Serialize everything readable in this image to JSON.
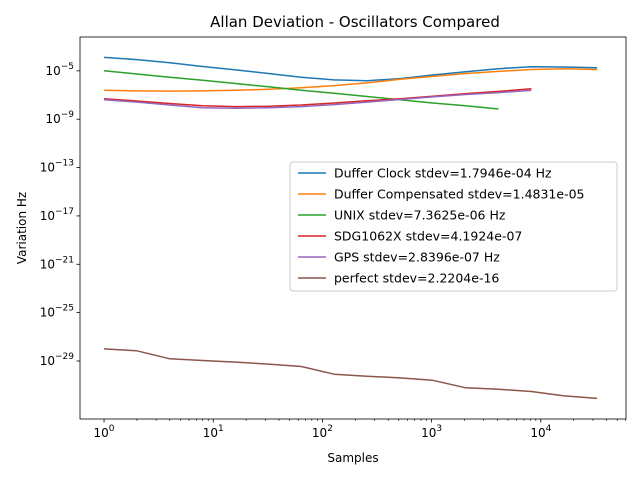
{
  "chart_data": {
    "type": "line",
    "title": "Allan Deviation - Oscillators Compared",
    "xlabel": "Samples",
    "ylabel": "Variation Hz",
    "xscale": "log",
    "yscale": "log",
    "xlim_exp": [
      -0.22,
      4.78
    ],
    "ylim_exp": [
      -33.8,
      -2.2
    ],
    "x_ticks": [
      {
        "exp": 0,
        "label": "0"
      },
      {
        "exp": 1,
        "label": "1"
      },
      {
        "exp": 2,
        "label": "2"
      },
      {
        "exp": 3,
        "label": "3"
      },
      {
        "exp": 4,
        "label": "4"
      }
    ],
    "y_ticks": [
      {
        "exp": -5,
        "label": "−5"
      },
      {
        "exp": -9,
        "label": "−9"
      },
      {
        "exp": -13,
        "label": "−13"
      },
      {
        "exp": -17,
        "label": "−17"
      },
      {
        "exp": -21,
        "label": "−21"
      },
      {
        "exp": -25,
        "label": "−25"
      },
      {
        "exp": -29,
        "label": "−29"
      }
    ],
    "grid": false,
    "legend_position": "center-right",
    "series": [
      {
        "name": "Duffer Clock stdev=1.7946e-04 Hz",
        "color": "#1f77b4",
        "x": [
          1,
          2,
          4,
          8,
          16,
          32,
          64,
          128,
          256,
          512,
          1024,
          2048,
          4096,
          8192,
          16384,
          32768
        ],
        "y": [
          0.00013,
          8.5e-05,
          4.7e-05,
          2.3e-05,
          1.2e-05,
          6e-06,
          3e-06,
          1.8e-06,
          1.5e-06,
          2.3e-06,
          4.5e-06,
          8.5e-06,
          1.5e-05,
          2.2e-05,
          2.1e-05,
          1.8e-05
        ]
      },
      {
        "name": "Duffer Compensated stdev=1.4831e-05",
        "color": "#ff7f0e",
        "x": [
          1,
          2,
          4,
          8,
          16,
          32,
          64,
          128,
          256,
          512,
          1024,
          2048,
          4096,
          8192,
          16384,
          32768
        ],
        "y": [
          2.5e-07,
          2.2e-07,
          2.1e-07,
          2.2e-07,
          2.5e-07,
          3e-07,
          4e-07,
          6e-07,
          1e-06,
          2e-06,
          3.5e-06,
          6e-06,
          9e-06,
          1.3e-05,
          1.5e-05,
          1.3e-05
        ]
      },
      {
        "name": "UNIX stdev=7.3625e-06 Hz",
        "color": "#2ca02c",
        "x": [
          1,
          2,
          4,
          8,
          16,
          32,
          64,
          128,
          256,
          512,
          1024,
          2048,
          4096
        ],
        "y": [
          1e-05,
          5.5e-06,
          3e-06,
          1.7e-06,
          9e-07,
          4.8e-07,
          2.5e-07,
          1.4e-07,
          7.5e-08,
          4e-08,
          2.2e-08,
          1.3e-08,
          7e-09
        ]
      },
      {
        "name": "SDG1062X stdev=4.1924e-07",
        "color": "#d62728",
        "x": [
          1,
          2,
          4,
          8,
          16,
          32,
          64,
          128,
          256,
          512,
          1024,
          2048,
          4096,
          8192
        ],
        "y": [
          5e-08,
          3.2e-08,
          2e-08,
          1.3e-08,
          1.1e-08,
          1.2e-08,
          1.5e-08,
          2.2e-08,
          3.3e-08,
          5e-08,
          8e-08,
          1.3e-07,
          2e-07,
          3.3e-07
        ]
      },
      {
        "name": "GPS stdev=2.8396e-07 Hz",
        "color": "#9467bd",
        "x": [
          1,
          2,
          4,
          8,
          16,
          32,
          64,
          128,
          256,
          512,
          1024,
          2048,
          4096,
          8192
        ],
        "y": [
          4e-08,
          2.6e-08,
          1.5e-08,
          9e-09,
          8e-09,
          9e-09,
          1.1e-08,
          1.6e-08,
          2.6e-08,
          4.3e-08,
          7e-08,
          1.1e-07,
          1.6e-07,
          2.4e-07
        ]
      },
      {
        "name": "perfect stdev=2.2204e-16",
        "color": "#8c564b",
        "x": [
          1,
          2,
          4,
          8,
          16,
          32,
          64,
          128,
          256,
          512,
          1024,
          2048,
          4096,
          8192,
          16384,
          32768
        ],
        "y": [
          1e-28,
          7e-29,
          1.5e-29,
          1.1e-29,
          8e-30,
          5.5e-30,
          3.5e-30,
          8e-31,
          5.5e-31,
          4e-31,
          2.5e-31,
          6e-32,
          4.5e-32,
          3e-32,
          1.3e-32,
          8e-33
        ]
      }
    ]
  }
}
